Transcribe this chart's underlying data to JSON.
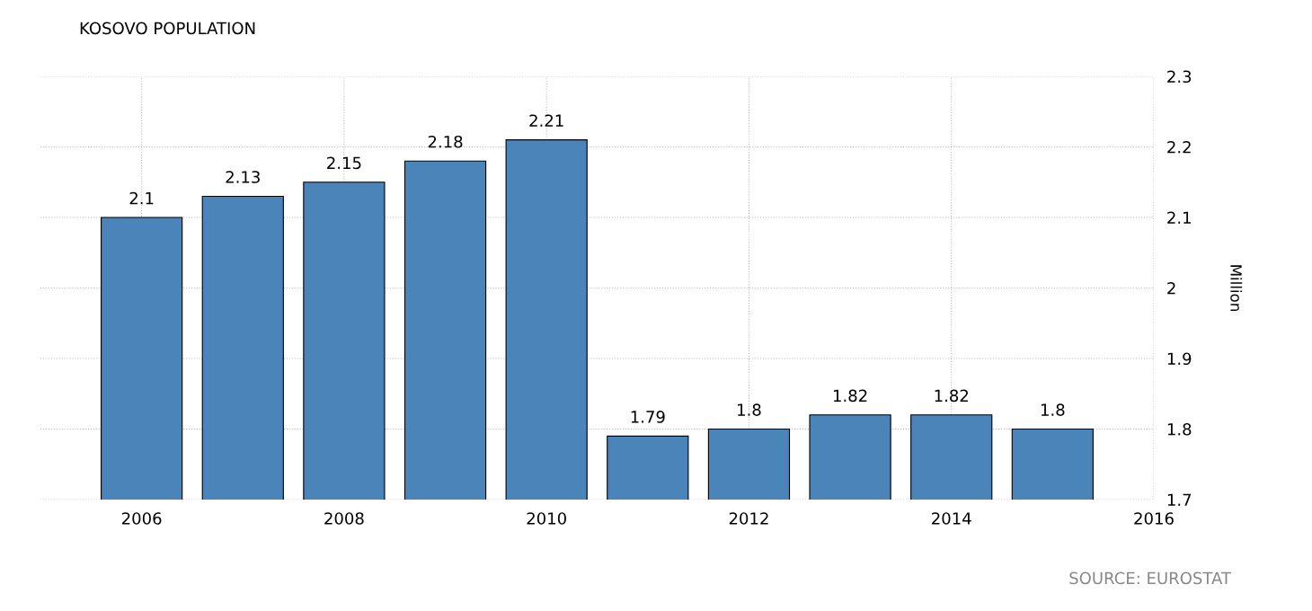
{
  "chart_data": {
    "type": "bar",
    "title": "KOSOVO POPULATION",
    "ylabel": "Million",
    "x": [
      2006,
      2007,
      2008,
      2009,
      2010,
      2011,
      2012,
      2013,
      2014,
      2015
    ],
    "values": [
      2.1,
      2.13,
      2.15,
      2.18,
      2.21,
      1.79,
      1.8,
      1.82,
      1.82,
      1.8
    ],
    "color": "#4a84b8",
    "xlim": [
      2005,
      2016
    ],
    "xticks": [
      2006,
      2008,
      2010,
      2012,
      2014,
      2016
    ],
    "ylim": [
      1.7,
      2.3
    ],
    "yticks": [
      1.7,
      1.8,
      1.9,
      2,
      2.1,
      2.2,
      2.3
    ],
    "grid": true,
    "data_labels": true,
    "annotations": [
      "SOURCE: EUROSTAT"
    ]
  }
}
